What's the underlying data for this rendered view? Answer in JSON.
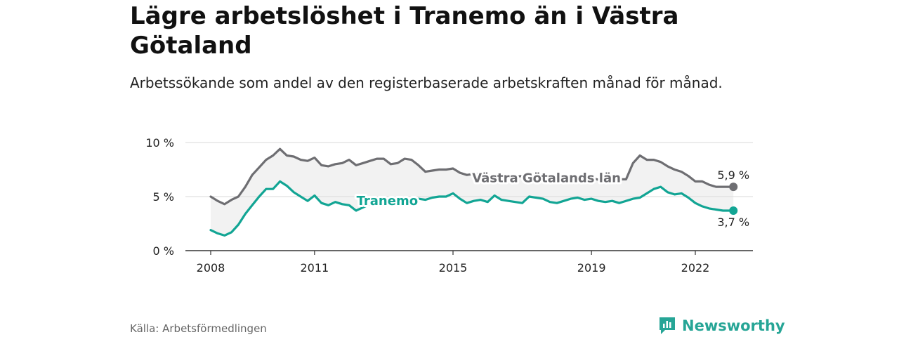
{
  "title": "Lägre arbetslöshet i Tranemo än i Västra Götaland",
  "subtitle": "Arbetssökande som andel av den registerbaserade arbetskraften månad för månad.",
  "source": "Källa: Arbetsförmedlingen",
  "brand": {
    "name": "Newsworthy",
    "icon": "newsworthy-logo-icon",
    "color": "#26a596"
  },
  "colors": {
    "region": "#6e6e72",
    "tranemo": "#12a594",
    "band": "#f2f2f2",
    "grid": "#d9d9d9",
    "axis": "#333333"
  },
  "chart_data": {
    "type": "line",
    "ylim": [
      0,
      10
    ],
    "xlim": [
      2008,
      2023.3
    ],
    "y_ticks": [
      {
        "value": 0,
        "label": "0 %"
      },
      {
        "value": 5,
        "label": "5 %"
      },
      {
        "value": 10,
        "label": "10 %"
      }
    ],
    "x_ticks": [
      {
        "value": 2008,
        "label": "2008"
      },
      {
        "value": 2011,
        "label": "2011"
      },
      {
        "value": 2015,
        "label": "2015"
      },
      {
        "value": 2019,
        "label": "2019"
      },
      {
        "value": 2022,
        "label": "2022"
      }
    ],
    "series": [
      {
        "name": "Västra Götalands län",
        "end_label": "5,9 %",
        "x": [
          2008,
          2008.2,
          2008.4,
          2008.6,
          2008.8,
          2009,
          2009.2,
          2009.4,
          2009.6,
          2009.8,
          2010,
          2010.2,
          2010.4,
          2010.6,
          2010.8,
          2011,
          2011.2,
          2011.4,
          2011.6,
          2011.8,
          2012,
          2012.2,
          2012.4,
          2012.6,
          2012.8,
          2013,
          2013.2,
          2013.4,
          2013.6,
          2013.8,
          2014,
          2014.2,
          2014.4,
          2014.6,
          2014.8,
          2015,
          2015.2,
          2015.4,
          2015.6,
          2015.8,
          2016,
          2016.3,
          2016.6,
          2017,
          2017.3,
          2017.6,
          2018,
          2018.3,
          2018.6,
          2019,
          2019.3,
          2019.6,
          2020,
          2020.2,
          2020.4,
          2020.6,
          2020.8,
          2021,
          2021.2,
          2021.4,
          2021.6,
          2021.8,
          2022,
          2022.2,
          2022.4,
          2022.6,
          2022.8,
          2023,
          2023.1
        ],
        "values": [
          5.0,
          4.6,
          4.3,
          4.7,
          5.0,
          5.9,
          7.0,
          7.7,
          8.4,
          8.8,
          9.4,
          8.8,
          8.7,
          8.4,
          8.3,
          8.6,
          7.9,
          7.8,
          8.0,
          8.1,
          8.4,
          7.9,
          8.1,
          8.3,
          8.5,
          8.5,
          8.0,
          8.1,
          8.5,
          8.4,
          7.9,
          7.3,
          7.4,
          7.5,
          7.5,
          7.6,
          7.2,
          7.0,
          7.1,
          7.1,
          7.0,
          6.9,
          6.8,
          6.9,
          6.9,
          6.7,
          6.8,
          6.6,
          6.6,
          6.7,
          6.5,
          6.6,
          6.6,
          8.1,
          8.8,
          8.4,
          8.4,
          8.2,
          7.8,
          7.5,
          7.3,
          6.9,
          6.4,
          6.4,
          6.1,
          5.9,
          5.9,
          5.9,
          5.9
        ]
      },
      {
        "name": "Tranemo",
        "end_label": "3,7 %",
        "x": [
          2008,
          2008.2,
          2008.4,
          2008.6,
          2008.8,
          2009,
          2009.2,
          2009.4,
          2009.6,
          2009.8,
          2010,
          2010.2,
          2010.4,
          2010.6,
          2010.8,
          2011,
          2011.2,
          2011.4,
          2011.6,
          2011.8,
          2012,
          2012.2,
          2012.4,
          2012.6,
          2012.8,
          2013,
          2013.2,
          2013.4,
          2013.6,
          2013.8,
          2014,
          2014.2,
          2014.4,
          2014.6,
          2014.8,
          2015,
          2015.2,
          2015.4,
          2015.6,
          2015.8,
          2016,
          2016.2,
          2016.4,
          2016.6,
          2016.8,
          2017,
          2017.2,
          2017.4,
          2017.6,
          2017.8,
          2018,
          2018.2,
          2018.4,
          2018.6,
          2018.8,
          2019,
          2019.2,
          2019.4,
          2019.6,
          2019.8,
          2020,
          2020.2,
          2020.4,
          2020.6,
          2020.8,
          2021,
          2021.2,
          2021.4,
          2021.6,
          2021.8,
          2022,
          2022.2,
          2022.4,
          2022.6,
          2022.8,
          2023,
          2023.1
        ],
        "values": [
          1.9,
          1.6,
          1.4,
          1.7,
          2.4,
          3.4,
          4.2,
          5.0,
          5.7,
          5.7,
          6.4,
          6.0,
          5.4,
          5.0,
          4.6,
          5.1,
          4.4,
          4.2,
          4.5,
          4.3,
          4.2,
          3.7,
          4.0,
          4.3,
          4.5,
          4.3,
          4.4,
          4.5,
          4.9,
          4.7,
          4.8,
          4.7,
          4.9,
          5.0,
          5.0,
          5.3,
          4.8,
          4.4,
          4.6,
          4.7,
          4.5,
          5.1,
          4.7,
          4.6,
          4.5,
          4.4,
          5.0,
          4.9,
          4.8,
          4.5,
          4.4,
          4.6,
          4.8,
          4.9,
          4.7,
          4.8,
          4.6,
          4.5,
          4.6,
          4.4,
          4.6,
          4.8,
          4.9,
          5.3,
          5.7,
          5.9,
          5.4,
          5.2,
          5.3,
          4.9,
          4.4,
          4.1,
          3.9,
          3.8,
          3.7,
          3.7,
          3.7
        ]
      }
    ]
  }
}
